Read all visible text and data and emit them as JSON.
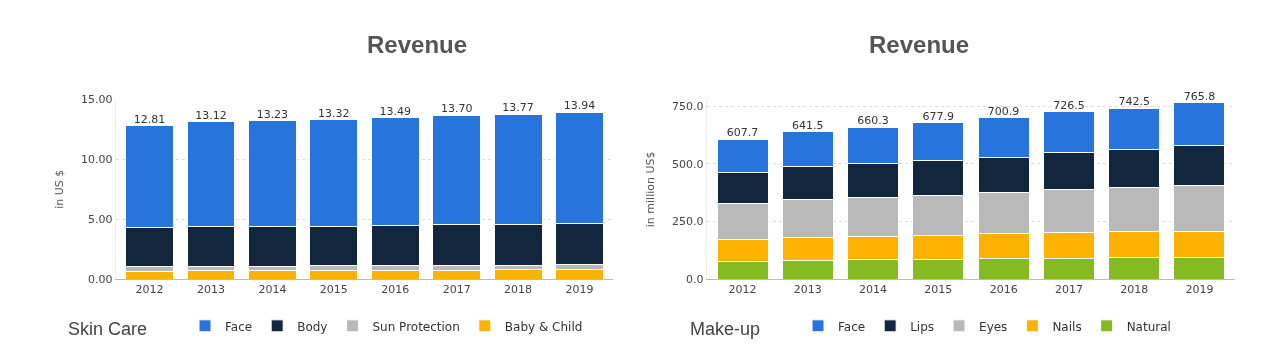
{
  "chart_data": [
    {
      "type": "bar",
      "title": "Revenue",
      "ylabel": "in US $",
      "legend_title": "Skin Care",
      "stacked": true,
      "grid": "y",
      "legend": "bottom",
      "categories": [
        "2012",
        "2013",
        "2014",
        "2015",
        "2016",
        "2017",
        "2018",
        "2019"
      ],
      "ylim": [
        0,
        15
      ],
      "yticks": [
        {
          "value": 0,
          "label": "0.00"
        },
        {
          "value": 5,
          "label": "5.00"
        },
        {
          "value": 10,
          "label": "10.00"
        },
        {
          "value": 15,
          "label": "15.00"
        }
      ],
      "series": [
        {
          "name": "Baby & Child",
          "color": "#fdb100",
          "values": [
            0.68,
            0.7,
            0.72,
            0.74,
            0.75,
            0.76,
            0.77,
            0.8
          ]
        },
        {
          "name": "Sun Protection",
          "color": "#b9b9b9",
          "values": [
            0.38,
            0.38,
            0.37,
            0.4,
            0.4,
            0.4,
            0.4,
            0.42
          ]
        },
        {
          "name": "Body",
          "color": "#12263d",
          "values": [
            3.27,
            3.3,
            3.29,
            3.24,
            3.32,
            3.42,
            3.41,
            3.44
          ]
        },
        {
          "name": "Face",
          "color": "#2774dc",
          "values": [
            8.48,
            8.74,
            8.85,
            8.94,
            9.02,
            9.12,
            9.19,
            9.28
          ]
        }
      ],
      "totals": [
        "12.81",
        "13.12",
        "13.23",
        "13.32",
        "13.49",
        "13.70",
        "13.77",
        "13.94"
      ]
    },
    {
      "type": "bar",
      "title": "Revenue",
      "ylabel": "in million US$",
      "legend_title": "Make-up",
      "stacked": true,
      "grid": "y",
      "legend": "bottom",
      "categories": [
        "2012",
        "2013",
        "2014",
        "2015",
        "2016",
        "2017",
        "2018",
        "2019"
      ],
      "ylim": [
        0,
        780
      ],
      "yticks": [
        {
          "value": 0,
          "label": "0.0"
        },
        {
          "value": 250,
          "label": "250.0"
        },
        {
          "value": 500,
          "label": "500.0"
        },
        {
          "value": 750,
          "label": "750.0"
        }
      ],
      "series": [
        {
          "name": "Natural",
          "color": "#85ba23",
          "values": [
            78,
            82,
            87,
            87,
            90,
            90,
            93,
            93
          ]
        },
        {
          "name": "Nails",
          "color": "#fdb100",
          "values": [
            96,
            99,
            98,
            101,
            107,
            112,
            113,
            116
          ]
        },
        {
          "name": "Eyes",
          "color": "#b9b9b9",
          "values": [
            154,
            163,
            171,
            175,
            179,
            187,
            190,
            199
          ]
        },
        {
          "name": "Lips",
          "color": "#12263d",
          "values": [
            135,
            144,
            148,
            153,
            154,
            160,
            165,
            172
          ]
        },
        {
          "name": "Face",
          "color": "#2774dc",
          "values": [
            144.7,
            153.5,
            156.3,
            161.9,
            170.9,
            177.5,
            181.5,
            185.8
          ]
        }
      ],
      "totals": [
        "607.7",
        "641.5",
        "660.3",
        "677.9",
        "700.9",
        "726.5",
        "742.5",
        "765.8"
      ]
    }
  ]
}
